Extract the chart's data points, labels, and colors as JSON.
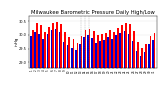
{
  "title": "Milwaukee Barometric Pressure Daily High/Low",
  "title_fontsize": 3.8,
  "ylabel": "inHg",
  "ylabel_fontsize": 3.0,
  "ylim": [
    28.8,
    30.7
  ],
  "yticks": [
    29.0,
    29.5,
    30.0,
    30.5
  ],
  "ytick_labels": [
    "29.0",
    "29.5",
    "30.0",
    "30.5"
  ],
  "background_color": "#ffffff",
  "bar_width": 0.42,
  "high_color": "#ff0000",
  "low_color": "#0000cc",
  "days": [
    1,
    2,
    3,
    4,
    5,
    6,
    7,
    8,
    9,
    10,
    11,
    12,
    13,
    14,
    15,
    16,
    17,
    18,
    19,
    20,
    21,
    22,
    23,
    24,
    25,
    26,
    27,
    28,
    29,
    30,
    31
  ],
  "highs": [
    30.18,
    30.45,
    30.35,
    30.12,
    30.28,
    30.42,
    30.48,
    30.38,
    30.12,
    29.92,
    29.85,
    29.72,
    29.95,
    30.18,
    30.22,
    30.15,
    29.98,
    30.05,
    30.08,
    30.18,
    30.12,
    30.25,
    30.35,
    30.45,
    30.38,
    30.15,
    29.75,
    29.52,
    29.68,
    29.95,
    30.08
  ],
  "lows": [
    29.95,
    30.12,
    30.05,
    29.85,
    30.02,
    30.18,
    30.22,
    30.12,
    29.75,
    29.62,
    29.52,
    29.45,
    29.68,
    29.92,
    29.98,
    29.88,
    29.72,
    29.78,
    29.82,
    29.92,
    29.85,
    29.98,
    30.08,
    30.15,
    30.05,
    29.78,
    29.42,
    29.22,
    29.38,
    29.68,
    29.82
  ],
  "dashed_vlines": [
    13,
    14,
    15
  ],
  "xlim_lo": 0.2,
  "xlim_hi": 31.8
}
